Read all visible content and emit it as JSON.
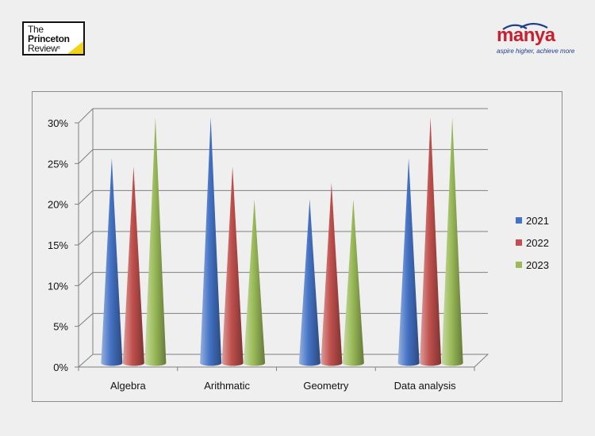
{
  "logos": {
    "princeton": {
      "line1": "The",
      "line2": "Princeton",
      "line3": "Review",
      "mark": "®"
    },
    "manya": {
      "name": "manya",
      "tagline": "aspire higher, achieve more"
    }
  },
  "chart_data": {
    "type": "bar",
    "style": "3d-cone",
    "categories": [
      "Algebra",
      "Arithmatic",
      "Geometry",
      "Data analysis"
    ],
    "series": [
      {
        "name": "2021",
        "values": [
          25,
          30,
          20,
          25
        ],
        "color": "#4472c4"
      },
      {
        "name": "2022",
        "values": [
          24,
          24,
          22,
          30
        ],
        "color": "#c0504d"
      },
      {
        "name": "2023",
        "values": [
          30,
          20,
          20,
          30
        ],
        "color": "#9bbb59"
      }
    ],
    "ylim": [
      0,
      30
    ],
    "yticks": [
      "0%",
      "5%",
      "10%",
      "15%",
      "20%",
      "25%",
      "30%"
    ],
    "ytick_values": [
      0,
      5,
      10,
      15,
      20,
      25,
      30
    ],
    "grid": true,
    "legend": "right",
    "title": "",
    "xlabel": "",
    "ylabel": ""
  }
}
